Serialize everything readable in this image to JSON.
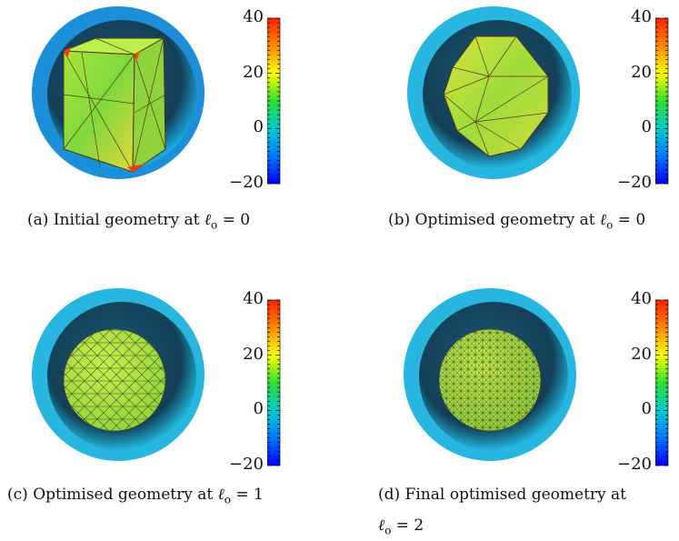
{
  "panels": [
    {
      "id": "a",
      "caption_prefix": "(a) Initial geometry at ",
      "caption_var": "ℓ",
      "caption_sub": "o",
      "caption_eq": " = 0",
      "caption_line2": ""
    },
    {
      "id": "b",
      "caption_prefix": "(b) Optimised geometry at ",
      "caption_var": "ℓ",
      "caption_sub": "o",
      "caption_eq": " = 0",
      "caption_line2": ""
    },
    {
      "id": "c",
      "caption_prefix": "(c) Optimised geometry at ",
      "caption_var": "ℓ",
      "caption_sub": "o",
      "caption_eq": " = 1",
      "caption_line2": ""
    },
    {
      "id": "d",
      "caption_prefix": "(d)  Final  optimised  geometry  at",
      "caption_var": "",
      "caption_sub": "",
      "caption_eq": "",
      "caption_line2_var": "ℓ",
      "caption_line2_sub": "o",
      "caption_line2_eq": " = 2"
    }
  ],
  "colorbar": {
    "tick_labels": [
      "40",
      "20",
      "0",
      "−20"
    ],
    "colors": [
      "#ff2200",
      "#ff8800",
      "#ffff00",
      "#33dd33",
      "#00cccc",
      "#0077ff",
      "#0000ff"
    ]
  }
}
